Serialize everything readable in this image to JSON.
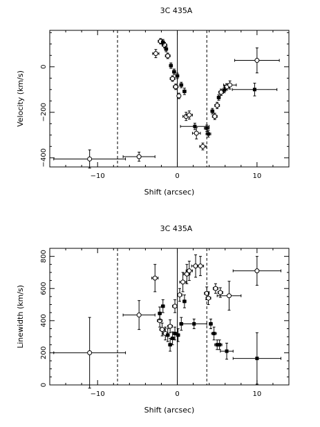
{
  "chart_data": [
    {
      "type": "scatter",
      "title": "3C 435A",
      "xlabel": "Shift (arcsec)",
      "ylabel": "Velocity (km/s)",
      "xlim": [
        -16,
        14
      ],
      "ylim": [
        -440,
        160
      ],
      "xticks": [
        -10,
        0,
        10
      ],
      "yticks": [
        -400,
        -200,
        0
      ],
      "xtick_labels": [
        "−10",
        "0",
        "10"
      ],
      "ytick_labels": [
        "−400",
        "−200",
        "0"
      ],
      "grid": false,
      "vlines": [
        {
          "x": 0,
          "style": "solid"
        },
        {
          "x": -7.5,
          "style": "dashed"
        },
        {
          "x": 3.7,
          "style": "dashed"
        }
      ],
      "series": [
        {
          "marker": "open-circle",
          "points": [
            {
              "x": -11,
              "y": -405,
              "xerr": 4.5,
              "yerr": 40
            },
            {
              "x": -4.8,
              "y": -395,
              "xerr": 2,
              "yerr": 20
            },
            {
              "x": -2.7,
              "y": 58,
              "xerr": 0.4,
              "yerr": 18
            },
            {
              "x": -2.1,
              "y": 112,
              "xerr": 0.3,
              "yerr": 12
            },
            {
              "x": -1.6,
              "y": 95,
              "xerr": 0.3,
              "yerr": 12
            },
            {
              "x": -1.2,
              "y": 48,
              "xerr": 0.3,
              "yerr": 12
            },
            {
              "x": -0.6,
              "y": -52,
              "xerr": 0.3,
              "yerr": 12
            },
            {
              "x": -0.2,
              "y": -88,
              "xerr": 0.3,
              "yerr": 12
            },
            {
              "x": 0.2,
              "y": -128,
              "xerr": 0.2,
              "yerr": 12
            },
            {
              "x": 1.1,
              "y": -218,
              "xerr": 0.4,
              "yerr": 18
            },
            {
              "x": 1.5,
              "y": -212,
              "xerr": 0.4,
              "yerr": 18
            },
            {
              "x": 2.4,
              "y": -292,
              "xerr": 0.5,
              "yerr": 25
            },
            {
              "x": 3.2,
              "y": -350,
              "xerr": 0.4,
              "yerr": 15
            },
            {
              "x": 4.7,
              "y": -218,
              "xerr": 0.3,
              "yerr": 14
            },
            {
              "x": 5.0,
              "y": -170,
              "xerr": 0.3,
              "yerr": 14
            },
            {
              "x": 5.5,
              "y": -112,
              "xerr": 0.3,
              "yerr": 14
            },
            {
              "x": 6.2,
              "y": -88,
              "xerr": 0.3,
              "yerr": 14
            },
            {
              "x": 6.6,
              "y": -80,
              "xerr": 0.8,
              "yerr": 18
            },
            {
              "x": 10,
              "y": 28,
              "xerr": 2.8,
              "yerr": 55
            }
          ]
        },
        {
          "marker": "filled-square",
          "points": [
            {
              "x": -1.8,
              "y": 108,
              "xerr": 0.2,
              "yerr": 12
            },
            {
              "x": -1.4,
              "y": 78,
              "xerr": 0.2,
              "yerr": 12
            },
            {
              "x": -0.8,
              "y": 5,
              "xerr": 0.2,
              "yerr": 12
            },
            {
              "x": -0.4,
              "y": -22,
              "xerr": 0.2,
              "yerr": 12
            },
            {
              "x": 0.0,
              "y": -40,
              "xerr": 0.2,
              "yerr": 12
            },
            {
              "x": 0.5,
              "y": -80,
              "xerr": 0.2,
              "yerr": 12
            },
            {
              "x": 0.9,
              "y": -108,
              "xerr": 0.2,
              "yerr": 14
            },
            {
              "x": 2.2,
              "y": -262,
              "xerr": 1.8,
              "yerr": 14
            },
            {
              "x": 3.7,
              "y": -270,
              "xerr": 0.3,
              "yerr": 14
            },
            {
              "x": 3.9,
              "y": -295,
              "xerr": 0.3,
              "yerr": 14
            },
            {
              "x": 4.4,
              "y": -195,
              "xerr": 0.2,
              "yerr": 12
            },
            {
              "x": 5.2,
              "y": -135,
              "xerr": 0.2,
              "yerr": 12
            },
            {
              "x": 5.9,
              "y": -102,
              "xerr": 0.2,
              "yerr": 12
            },
            {
              "x": 9.7,
              "y": -100,
              "xerr": 2.8,
              "yerr": 28
            }
          ]
        }
      ]
    },
    {
      "type": "scatter",
      "title": "3C 435A",
      "xlabel": "Shift (arcsec)",
      "ylabel": "Linewidth (km/s)",
      "xlim": [
        -16,
        14
      ],
      "ylim": [
        0,
        850
      ],
      "xticks": [
        -10,
        0,
        10
      ],
      "yticks": [
        0,
        200,
        400,
        600,
        800
      ],
      "xtick_labels": [
        "−10",
        "0",
        "10"
      ],
      "ytick_labels": [
        "0",
        "200",
        "400",
        "600",
        "800"
      ],
      "grid": false,
      "vlines": [
        {
          "x": 0,
          "style": "solid"
        },
        {
          "x": -7.5,
          "style": "dashed"
        },
        {
          "x": 3.7,
          "style": "dashed"
        }
      ],
      "series": [
        {
          "marker": "open-circle",
          "points": [
            {
              "x": -11,
              "y": 200,
              "xerr": 4.5,
              "yerr": 220
            },
            {
              "x": -4.8,
              "y": 435,
              "xerr": 2,
              "yerr": 90
            },
            {
              "x": -2.8,
              "y": 665,
              "xerr": 0.4,
              "yerr": 85
            },
            {
              "x": -2.2,
              "y": 400,
              "xerr": 0.3,
              "yerr": 40
            },
            {
              "x": -1.9,
              "y": 345,
              "xerr": 0.3,
              "yerr": 40
            },
            {
              "x": -1.5,
              "y": 320,
              "xerr": 0.3,
              "yerr": 40
            },
            {
              "x": -0.9,
              "y": 365,
              "xerr": 0.3,
              "yerr": 40
            },
            {
              "x": -0.3,
              "y": 490,
              "xerr": 0.3,
              "yerr": 40
            },
            {
              "x": 0.3,
              "y": 560,
              "xerr": 0.3,
              "yerr": 40
            },
            {
              "x": 0.7,
              "y": 640,
              "xerr": 0.4,
              "yerr": 60
            },
            {
              "x": 1.2,
              "y": 690,
              "xerr": 0.4,
              "yerr": 60
            },
            {
              "x": 1.5,
              "y": 710,
              "xerr": 0.4,
              "yerr": 60
            },
            {
              "x": 2.3,
              "y": 740,
              "xerr": 0.5,
              "yerr": 70
            },
            {
              "x": 2.9,
              "y": 740,
              "xerr": 0.4,
              "yerr": 60
            },
            {
              "x": 3.7,
              "y": 570,
              "xerr": 0.3,
              "yerr": 40
            },
            {
              "x": 3.9,
              "y": 540,
              "xerr": 0.3,
              "yerr": 40
            },
            {
              "x": 4.8,
              "y": 600,
              "xerr": 0.3,
              "yerr": 30
            },
            {
              "x": 5.4,
              "y": 575,
              "xerr": 0.3,
              "yerr": 30
            },
            {
              "x": 6.5,
              "y": 555,
              "xerr": 1.5,
              "yerr": 90
            },
            {
              "x": 10,
              "y": 710,
              "xerr": 3,
              "yerr": 90
            }
          ]
        },
        {
          "marker": "filled-square",
          "points": [
            {
              "x": -2.2,
              "y": 445,
              "xerr": 0.2,
              "yerr": 40
            },
            {
              "x": -1.8,
              "y": 490,
              "xerr": 0.2,
              "yerr": 40
            },
            {
              "x": -1.2,
              "y": 310,
              "xerr": 0.2,
              "yerr": 40
            },
            {
              "x": -0.9,
              "y": 250,
              "xerr": 0.2,
              "yerr": 40
            },
            {
              "x": -0.6,
              "y": 290,
              "xerr": 0.2,
              "yerr": 40
            },
            {
              "x": -0.3,
              "y": 320,
              "xerr": 0.2,
              "yerr": 40
            },
            {
              "x": 0.1,
              "y": 310,
              "xerr": 0.2,
              "yerr": 40
            },
            {
              "x": 0.5,
              "y": 380,
              "xerr": 0.2,
              "yerr": 40
            },
            {
              "x": 0.9,
              "y": 520,
              "xerr": 0.2,
              "yerr": 40
            },
            {
              "x": 2.1,
              "y": 380,
              "xerr": 1.6,
              "yerr": 30
            },
            {
              "x": 4.2,
              "y": 380,
              "xerr": 0.2,
              "yerr": 30
            },
            {
              "x": 4.6,
              "y": 320,
              "xerr": 0.3,
              "yerr": 40
            },
            {
              "x": 5.0,
              "y": 250,
              "xerr": 0.3,
              "yerr": 30
            },
            {
              "x": 5.3,
              "y": 250,
              "xerr": 0.3,
              "yerr": 30
            },
            {
              "x": 6.2,
              "y": 210,
              "xerr": 0.8,
              "yerr": 50
            },
            {
              "x": 10,
              "y": 165,
              "xerr": 3,
              "yerr": 160
            }
          ]
        }
      ]
    }
  ]
}
